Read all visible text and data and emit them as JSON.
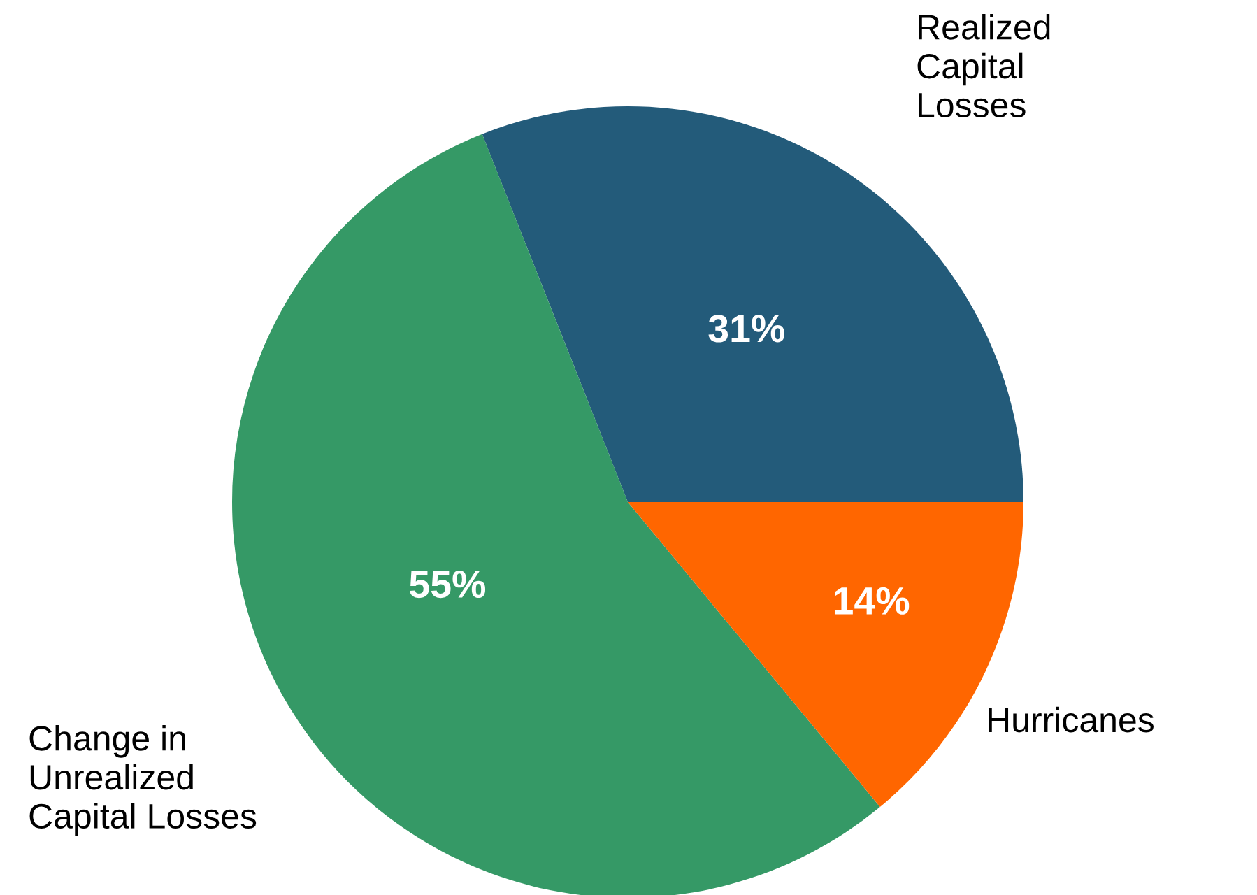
{
  "chart_data": {
    "type": "pie",
    "categories": [
      "Realized\nCapital\nLosses",
      "Change in\nUnrealized\nCapital Losses",
      "Hurricanes"
    ],
    "values": [
      31,
      55,
      14
    ],
    "value_labels": [
      "31%",
      "55%",
      "14%"
    ],
    "colors": [
      "#235b7a",
      "#359966",
      "#ff6600"
    ],
    "legend": false
  }
}
